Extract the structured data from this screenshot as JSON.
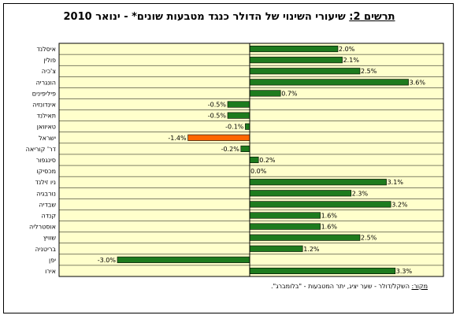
{
  "chart_title": {
    "prefix": "תרשים 2:",
    "text": "שיעורי השינוי של הדולר כנגד מטבעות שונים* - ינואר 2010"
  },
  "source_note": {
    "label": "מקור:",
    "text": "השקל/דולר - שער יציג, יתר המטבעות - \"בלומברג\"."
  },
  "colors": {
    "positive_bar": "#1e7b1e",
    "highlight_bar": "#ff6600",
    "plot_background": "#ffffcc",
    "grid": "#000000"
  },
  "chart_data": {
    "type": "bar",
    "orientation": "horizontal",
    "categories": [
      "איסלנד",
      "פולין",
      "צ'כיה",
      "הונגריה",
      "פיליפינים",
      "אינדונזיה",
      "תאילנד",
      "טאיוואן",
      "ישראל",
      "דר' קוריאה",
      "סינגפור",
      "מכסיקו",
      "ניו זילנד",
      "נורבגיה",
      "שבדיה",
      "קנדה",
      "אוסטרליה",
      "שוויץ",
      "בריטניה",
      "יפן",
      "אירו"
    ],
    "value_labels": [
      "2.0%",
      "2.1%",
      "2.5%",
      "3.6%",
      "0.7%",
      "-0.5%",
      "-0.5%",
      "-0.1%",
      "-1.4%",
      "-0.2%",
      "0.2%",
      "0.0%",
      "3.1%",
      "2.3%",
      "3.2%",
      "1.6%",
      "1.6%",
      "2.5%",
      "1.2%",
      "-3.0%",
      "3.3%"
    ],
    "values": [
      2.0,
      2.1,
      2.5,
      3.6,
      0.7,
      -0.5,
      -0.5,
      -0.1,
      -1.4,
      -0.2,
      0.2,
      0.0,
      3.1,
      2.3,
      3.2,
      1.6,
      1.6,
      2.5,
      1.2,
      -3.0,
      3.3
    ],
    "highlight_category": "ישראל",
    "xlim": [
      -4,
      4
    ],
    "grid": true,
    "legend": "none"
  }
}
